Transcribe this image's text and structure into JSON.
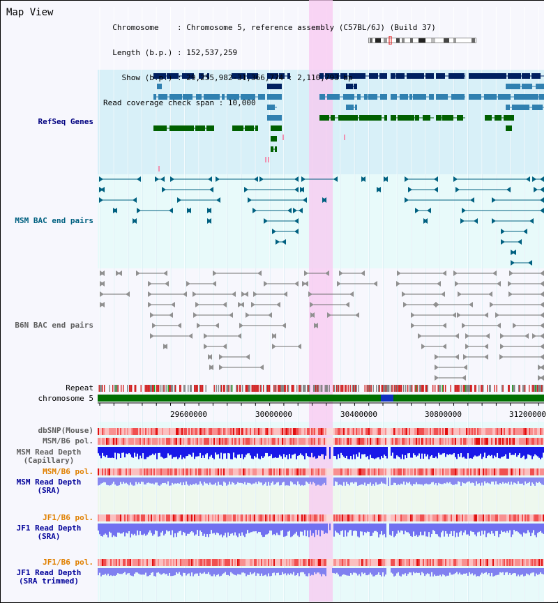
{
  "header": {
    "title": "Map View",
    "chromosome_label": "Chromosome",
    "chromosome_value": "Chromosome 5, reference assembly (C57BL/6J) (Build 37)",
    "length_label": "Length (b.p.)",
    "length_value": "152,537,259",
    "show_label": "Show (b.p.)",
    "show_value": "29,255,982-31,366,774 : 2,110,793 bp",
    "coverage_label": "Read coverage check span",
    "coverage_value": "10,000"
  },
  "tracks": {
    "refseq": "RefSeq Genes",
    "msm_bac": "MSM BAC end pairs",
    "b6n_bac": "B6N BAC end pairs",
    "repeat": "Repeat",
    "chromosome": "chromosome 5",
    "dbsnp": "dbSNP(Mouse)",
    "msm_b6_pol_1": "MSM/B6 pol.",
    "msm_depth_cap_1": "MSM Read Depth",
    "msm_depth_cap_2": "(Capillary)",
    "msm_b6_pol_2": "MSM/B6 pol.",
    "msm_depth_sra_1": "MSM Read Depth",
    "msm_depth_sra_2": "(SRA)",
    "jf1_b6_pol_1": "JF1/B6 pol.",
    "jf1_depth_sra_1": "JF1 Read Depth",
    "jf1_depth_sra_2": "(SRA)",
    "jf1_b6_pol_2": "JF1/B6 pol.",
    "jf1_depth_trim_1": "JF1 Read Depth",
    "jf1_depth_trim_2": "(SRA trimmed)"
  },
  "axis_ticks": [
    "29600000",
    "30000000",
    "30400000",
    "30800000",
    "31200000"
  ],
  "colors": {
    "refseq_label": "#000080",
    "msm_label": "#006080",
    "b6n_label": "#606060",
    "orange_label": "#e08000",
    "blue_label": "#000099",
    "highlight": "#f8c8f0",
    "gene_dark": "#002060",
    "gene_mid": "#3080b0",
    "gene_green": "#006000",
    "chrom_green": "#007000"
  }
}
